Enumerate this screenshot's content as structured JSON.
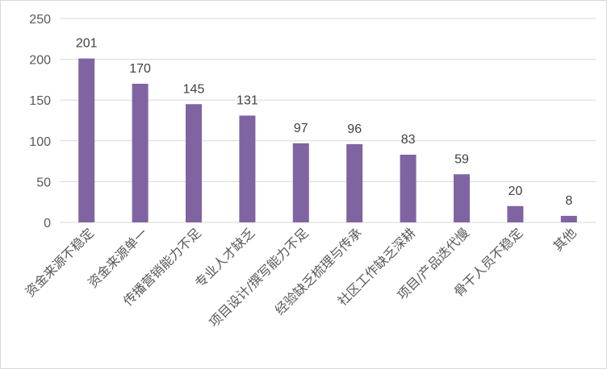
{
  "chart_data": {
    "type": "bar",
    "categories": [
      "资金来源不稳定",
      "资金来源单一",
      "传播营销能力不足",
      "专业人才缺乏",
      "项目设计/撰写能力不足",
      "经验缺乏梳理与传承",
      "社区工作缺乏深耕",
      "项目/产品迭代慢",
      "骨干人员不稳定",
      "其他"
    ],
    "values": [
      201,
      170,
      145,
      131,
      97,
      96,
      83,
      59,
      20,
      8
    ],
    "ylim": [
      0,
      250
    ],
    "yticks": [
      0,
      50,
      100,
      150,
      200,
      250
    ],
    "grid": true,
    "legend": "none",
    "bar_color": "#8064a2",
    "grid_color": "#d9d9d9"
  }
}
